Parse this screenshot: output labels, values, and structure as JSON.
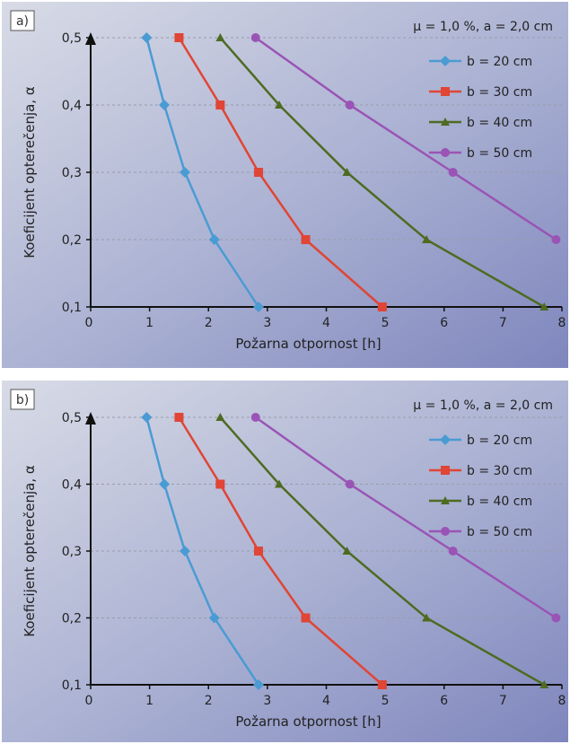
{
  "chart_data": [
    {
      "panel_label": "a)",
      "type": "line",
      "annotation": "μ = 1,0 %, a = 2,0 cm",
      "xlabel": "Požarna otpornost [h]",
      "ylabel": "Koeficijent opterečenja, α",
      "xlim": [
        0,
        8
      ],
      "ylim": [
        0.1,
        0.5
      ],
      "xticks": [
        "0",
        "1",
        "2",
        "3",
        "4",
        "5",
        "6",
        "7",
        "8"
      ],
      "yticks": [
        "0,1",
        "0,2",
        "0,3",
        "0,4",
        "0,5"
      ],
      "grid": "horizontal dashed",
      "legend_position": "top-right",
      "series": [
        {
          "name": "b = 20 cm",
          "color": "#4a9bd4",
          "marker": "diamond",
          "x": [
            2.85,
            2.1,
            1.6,
            1.25,
            0.95
          ],
          "y": [
            0.1,
            0.2,
            0.3,
            0.4,
            0.5
          ]
        },
        {
          "name": "b = 30 cm",
          "color": "#e04535",
          "marker": "square",
          "x": [
            4.95,
            3.65,
            2.85,
            2.2,
            1.5
          ],
          "y": [
            0.1,
            0.2,
            0.3,
            0.4,
            0.5
          ]
        },
        {
          "name": "b = 40 cm",
          "color": "#4e6b22",
          "marker": "triangle",
          "x": [
            7.7,
            5.7,
            4.35,
            3.2,
            2.2
          ],
          "y": [
            0.1,
            0.2,
            0.3,
            0.4,
            0.5
          ]
        },
        {
          "name": "b = 50 cm",
          "color": "#9a54b5",
          "marker": "circle",
          "x": [
            7.9,
            6.15,
            4.4,
            2.8
          ],
          "y": [
            0.2,
            0.3,
            0.4,
            0.5
          ]
        }
      ]
    },
    {
      "panel_label": "b)",
      "type": "line",
      "annotation": "μ = 1,0 %, a = 2,0 cm",
      "xlabel": "Požarna otpornost [h]",
      "ylabel": "Koeficijent opterečenja, α",
      "xlim": [
        0,
        8
      ],
      "ylim": [
        0.1,
        0.5
      ],
      "xticks": [
        "0",
        "1",
        "2",
        "3",
        "4",
        "5",
        "6",
        "7",
        "8"
      ],
      "yticks": [
        "0,1",
        "0,2",
        "0,3",
        "0,4",
        "0,5"
      ],
      "grid": "horizontal dashed",
      "legend_position": "top-right",
      "series": [
        {
          "name": "b = 20 cm",
          "color": "#4a9bd4",
          "marker": "diamond",
          "x": [
            2.85,
            2.1,
            1.6,
            1.25,
            0.95
          ],
          "y": [
            0.1,
            0.2,
            0.3,
            0.4,
            0.5
          ]
        },
        {
          "name": "b = 30 cm",
          "color": "#e04535",
          "marker": "square",
          "x": [
            4.95,
            3.65,
            2.85,
            2.2,
            1.5
          ],
          "y": [
            0.1,
            0.2,
            0.3,
            0.4,
            0.5
          ]
        },
        {
          "name": "b = 40 cm",
          "color": "#4e6b22",
          "marker": "triangle",
          "x": [
            7.7,
            5.7,
            4.35,
            3.2,
            2.2
          ],
          "y": [
            0.1,
            0.2,
            0.3,
            0.4,
            0.5
          ]
        },
        {
          "name": "b = 50 cm",
          "color": "#9a54b5",
          "marker": "circle",
          "x": [
            7.9,
            6.15,
            4.4,
            2.8
          ],
          "y": [
            0.2,
            0.3,
            0.4,
            0.5
          ]
        }
      ]
    }
  ]
}
